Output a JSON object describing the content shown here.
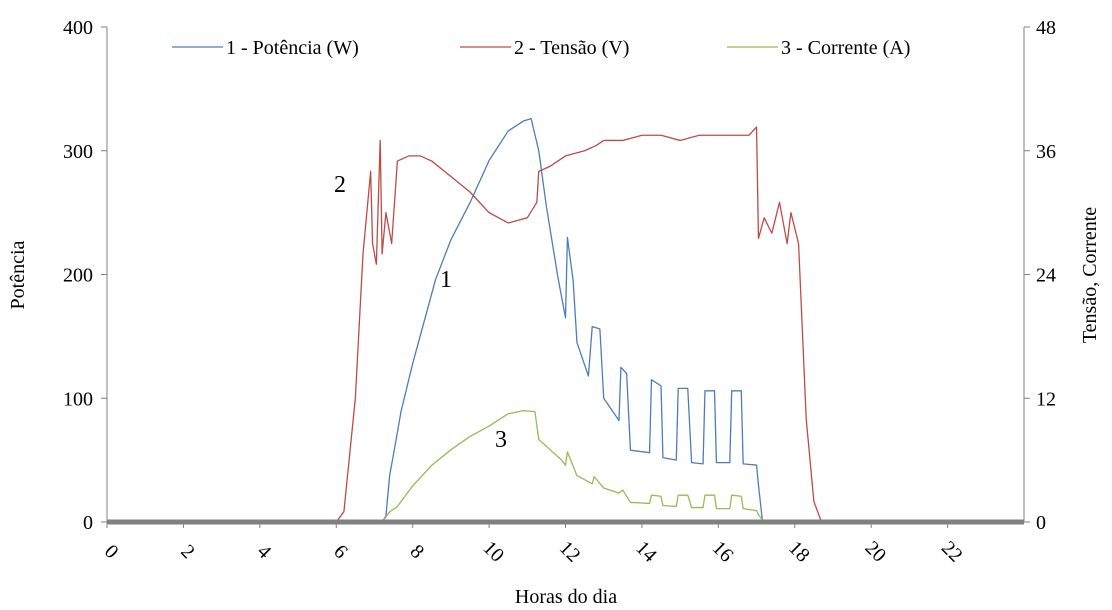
{
  "colors": {
    "potencia": "#4a7ebb",
    "tensao": "#be4b48",
    "corrente": "#98b954",
    "axis": "#808080",
    "baseline": "#808080"
  },
  "chart_data": {
    "type": "line",
    "xlabel": "Horas do dia",
    "ylabel_left": "Potência",
    "ylabel_right": "Tensão, Corrente",
    "xlim": [
      0,
      24
    ],
    "ylim_left": [
      0,
      400
    ],
    "ylim_right": [
      0,
      48
    ],
    "x_ticks": [
      "0",
      "2",
      "4",
      "6",
      "8",
      "10",
      "12",
      "14",
      "16",
      "18",
      "20",
      "22"
    ],
    "y_ticks_left": [
      "0",
      "100",
      "200",
      "300",
      "400"
    ],
    "y_ticks_right": [
      "0",
      "12",
      "24",
      "36",
      "48"
    ],
    "legend_position": "top",
    "annotations": [
      "1",
      "2",
      "3"
    ],
    "series": [
      {
        "name": "1 - Potência (W)",
        "axis": "left",
        "points": [
          [
            0,
            0
          ],
          [
            7.2,
            0
          ],
          [
            7.3,
            5
          ],
          [
            7.4,
            38
          ],
          [
            7.5,
            55
          ],
          [
            7.7,
            90
          ],
          [
            8.0,
            128
          ],
          [
            8.3,
            162
          ],
          [
            8.6,
            196
          ],
          [
            9.0,
            228
          ],
          [
            9.5,
            258
          ],
          [
            10.0,
            292
          ],
          [
            10.5,
            316
          ],
          [
            10.9,
            324
          ],
          [
            11.1,
            326
          ],
          [
            11.3,
            300
          ],
          [
            11.5,
            255
          ],
          [
            11.8,
            198
          ],
          [
            12.0,
            165
          ],
          [
            12.05,
            230
          ],
          [
            12.2,
            195
          ],
          [
            12.3,
            145
          ],
          [
            12.6,
            118
          ],
          [
            12.7,
            158
          ],
          [
            12.9,
            156
          ],
          [
            13.0,
            100
          ],
          [
            13.4,
            82
          ],
          [
            13.45,
            125
          ],
          [
            13.6,
            120
          ],
          [
            13.7,
            58
          ],
          [
            14.2,
            56
          ],
          [
            14.25,
            115
          ],
          [
            14.5,
            110
          ],
          [
            14.55,
            52
          ],
          [
            14.9,
            50
          ],
          [
            14.95,
            108
          ],
          [
            15.2,
            108
          ],
          [
            15.3,
            48
          ],
          [
            15.6,
            47
          ],
          [
            15.65,
            106
          ],
          [
            15.9,
            106
          ],
          [
            15.95,
            48
          ],
          [
            16.3,
            48
          ],
          [
            16.35,
            106
          ],
          [
            16.6,
            106
          ],
          [
            16.65,
            47
          ],
          [
            17.0,
            46
          ],
          [
            17.05,
            30
          ],
          [
            17.15,
            2
          ],
          [
            17.2,
            0
          ],
          [
            24,
            0
          ]
        ]
      },
      {
        "name": "2 - Tensão (V)",
        "axis": "right",
        "points": [
          [
            0,
            0
          ],
          [
            6.0,
            0
          ],
          [
            6.2,
            1
          ],
          [
            6.5,
            12
          ],
          [
            6.7,
            26
          ],
          [
            6.8,
            30
          ],
          [
            6.9,
            34
          ],
          [
            6.95,
            27
          ],
          [
            7.05,
            25
          ],
          [
            7.15,
            37
          ],
          [
            7.2,
            26
          ],
          [
            7.3,
            30
          ],
          [
            7.45,
            27
          ],
          [
            7.6,
            35
          ],
          [
            7.9,
            35.5
          ],
          [
            8.2,
            35.5
          ],
          [
            8.5,
            35
          ],
          [
            9.0,
            33.5
          ],
          [
            9.5,
            32
          ],
          [
            10.0,
            30
          ],
          [
            10.5,
            29
          ],
          [
            11.0,
            29.5
          ],
          [
            11.25,
            31
          ],
          [
            11.3,
            34
          ],
          [
            11.6,
            34.5
          ],
          [
            12.0,
            35.5
          ],
          [
            12.5,
            36
          ],
          [
            12.8,
            36.5
          ],
          [
            13.0,
            37
          ],
          [
            13.5,
            37
          ],
          [
            14.0,
            37.5
          ],
          [
            14.5,
            37.5
          ],
          [
            15.0,
            37
          ],
          [
            15.5,
            37.5
          ],
          [
            16.0,
            37.5
          ],
          [
            16.5,
            37.5
          ],
          [
            16.8,
            37.5
          ],
          [
            17.0,
            38.3
          ],
          [
            17.05,
            27.5
          ],
          [
            17.2,
            29.5
          ],
          [
            17.4,
            28
          ],
          [
            17.6,
            31
          ],
          [
            17.8,
            27
          ],
          [
            17.9,
            30
          ],
          [
            18.1,
            27
          ],
          [
            18.3,
            10
          ],
          [
            18.5,
            2
          ],
          [
            18.7,
            0
          ],
          [
            24,
            0
          ]
        ]
      },
      {
        "name": "3 - Corrente (A)",
        "axis": "right",
        "points": [
          [
            0,
            0
          ],
          [
            7.2,
            0
          ],
          [
            7.4,
            1
          ],
          [
            7.6,
            1.5
          ],
          [
            8.0,
            3.5
          ],
          [
            8.5,
            5.5
          ],
          [
            9.0,
            7
          ],
          [
            9.5,
            8.3
          ],
          [
            10.0,
            9.3
          ],
          [
            10.5,
            10.5
          ],
          [
            10.9,
            10.8
          ],
          [
            11.2,
            10.7
          ],
          [
            11.3,
            8
          ],
          [
            11.6,
            7
          ],
          [
            11.9,
            6
          ],
          [
            12.0,
            5.5
          ],
          [
            12.05,
            6.8
          ],
          [
            12.3,
            4.5
          ],
          [
            12.7,
            3.7
          ],
          [
            12.75,
            4.4
          ],
          [
            13.0,
            3.3
          ],
          [
            13.4,
            2.8
          ],
          [
            13.5,
            3.1
          ],
          [
            13.7,
            1.9
          ],
          [
            14.2,
            1.8
          ],
          [
            14.25,
            2.6
          ],
          [
            14.5,
            2.5
          ],
          [
            14.55,
            1.6
          ],
          [
            14.9,
            1.5
          ],
          [
            14.95,
            2.6
          ],
          [
            15.2,
            2.6
          ],
          [
            15.3,
            1.4
          ],
          [
            15.6,
            1.4
          ],
          [
            15.65,
            2.6
          ],
          [
            15.9,
            2.6
          ],
          [
            15.95,
            1.3
          ],
          [
            16.3,
            1.3
          ],
          [
            16.35,
            2.6
          ],
          [
            16.6,
            2.5
          ],
          [
            16.65,
            1.3
          ],
          [
            17.0,
            1.1
          ],
          [
            17.05,
            0.7
          ],
          [
            17.2,
            0
          ],
          [
            24,
            0
          ]
        ]
      }
    ]
  }
}
